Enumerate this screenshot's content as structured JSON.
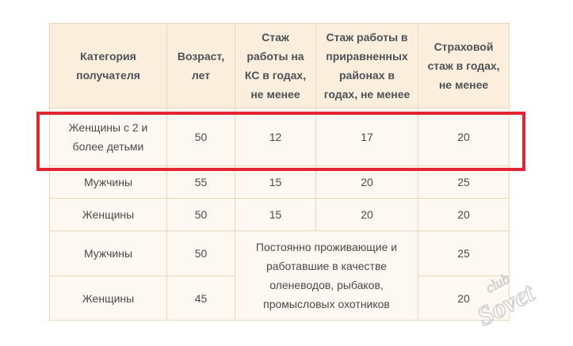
{
  "table": {
    "headers": [
      "Категория получателя",
      "Возраст, лет",
      "Стаж работы на КС в годах, не менее",
      "Стаж работы в приравненных районах в годах, не менее",
      "Страховой стаж в годах, не менее"
    ],
    "rows": [
      {
        "category": "Женщины с 2 и более детьми",
        "age": "50",
        "ks": "12",
        "equated": "17",
        "insurance": "20"
      },
      {
        "category": "Мужчины",
        "age": "55",
        "ks": "15",
        "equated": "20",
        "insurance": "25"
      },
      {
        "category": "Женщины",
        "age": "50",
        "ks": "15",
        "equated": "20",
        "insurance": "20"
      },
      {
        "category": "Мужчины",
        "age": "50",
        "insurance": "25"
      },
      {
        "category": "Женщины",
        "age": "45",
        "insurance": "20"
      }
    ],
    "merged_note": "Постоянно проживающие и работавшие в качестве оленеводов, рыбаков, промысловых охотников"
  },
  "highlight": {
    "color": "#e4252f"
  },
  "watermark": {
    "text": "Sovet",
    "subtext": "club"
  }
}
